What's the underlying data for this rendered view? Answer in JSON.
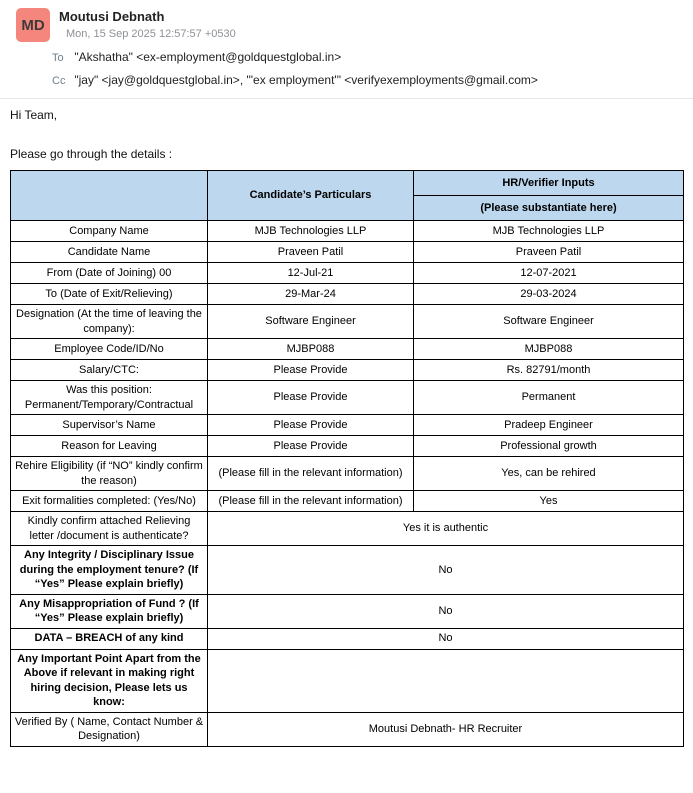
{
  "colors": {
    "avatar_bg": "#F4867E",
    "table_header_bg": "#BDD7EE",
    "table_border": "#000000"
  },
  "email": {
    "avatar_initials": "MD",
    "sender_name": "Moutusi Debnath",
    "date": "Mon, 15 Sep 2025 12:57:57 +0530",
    "to_label": "To",
    "to_value": "\"Akshatha\" <ex-employment@goldquestglobal.in>",
    "cc_label": "Cc",
    "cc_value": "\"jay\" <jay@goldquestglobal.in>, \"'ex employment'\" <verifyexemployments@gmail.com>"
  },
  "body": {
    "greeting": "Hi Team,",
    "intro": "Please go through the details :"
  },
  "table": {
    "header": {
      "col1": "",
      "col2": "Candidate’s Particulars",
      "col3_top": "HR/Verifier Inputs",
      "col3_bottom": "(Please substantiate here)"
    },
    "rows": [
      {
        "label": "Company Name",
        "candidate": "MJB Technologies LLP",
        "hr": "MJB Technologies LLP"
      },
      {
        "label": "Candidate Name",
        "candidate": "Praveen Patil",
        "hr": "Praveen Patil"
      },
      {
        "label": "From (Date of Joining) 00",
        "candidate": "12-Jul-21",
        "hr": "12-07-2021"
      },
      {
        "label": "To (Date of Exit/Relieving)",
        "candidate": "29-Mar-24",
        "hr": "29-03-2024"
      },
      {
        "label": "Designation (At the time of leaving the company):",
        "candidate": "Software Engineer",
        "hr": "Software Engineer"
      },
      {
        "label": "Employee Code/ID/No",
        "candidate": "MJBP088",
        "hr": "MJBP088"
      },
      {
        "label": "Salary/CTC:",
        "candidate": "Please Provide",
        "hr": "Rs. 82791/month"
      },
      {
        "label": "Was this position: Permanent/Temporary/Contractual",
        "candidate": "Please Provide",
        "hr": "Permanent"
      },
      {
        "label": "Supervisor’s Name",
        "candidate": "Please Provide",
        "hr": "Pradeep Engineer"
      },
      {
        "label": "Reason for Leaving",
        "candidate": "Please Provide",
        "hr": "Professional growth"
      },
      {
        "label": "Rehire Eligibility (if “NO” kindly confirm the reason)",
        "candidate": "(Please fill in the relevant information)",
        "hr": "Yes, can be rehired"
      },
      {
        "label": "Exit formalities completed: (Yes/No)",
        "candidate": "(Please fill in the relevant information)",
        "hr": "Yes"
      },
      {
        "label": "Kindly confirm attached Relieving letter /document is authenticate?",
        "merged": "Yes it is authentic"
      },
      {
        "label": "Any Integrity / Disciplinary Issue during the employment tenure? (If “Yes” Please explain briefly)",
        "bold": true,
        "merged": "No"
      },
      {
        "label": "Any Misappropriation of Fund ? (If “Yes” Please explain briefly)",
        "bold": true,
        "merged": "No"
      },
      {
        "label": "DATA – BREACH of any kind",
        "bold": true,
        "merged": "No"
      },
      {
        "label": "Any Important Point Apart from the Above if relevant in making right hiring decision, Please lets us know:",
        "bold": true,
        "merged": ""
      },
      {
        "label": "Verified By ( Name, Contact Number & Designation)",
        "merged": "Moutusi Debnath- HR Recruiter"
      }
    ]
  }
}
